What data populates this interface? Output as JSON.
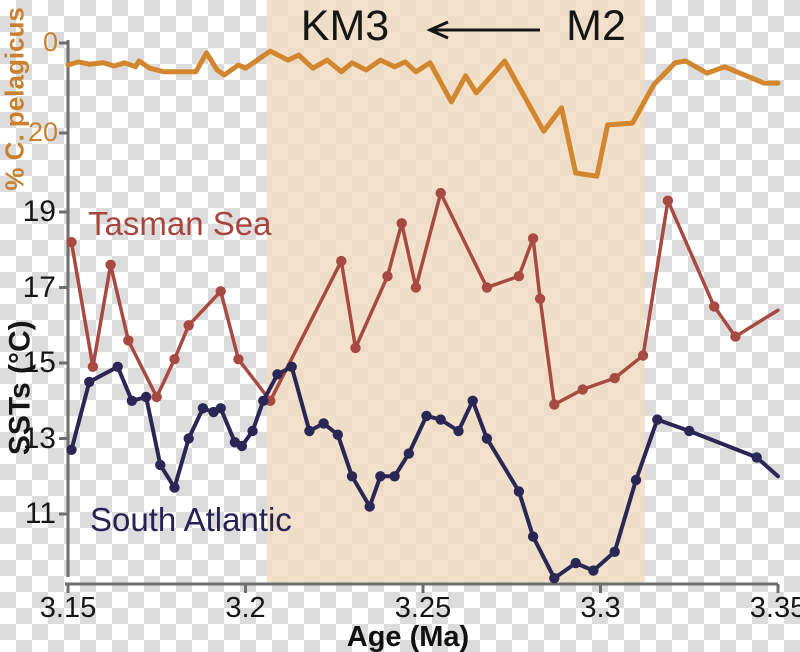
{
  "chart_data": {
    "type": "line",
    "title": "",
    "x_axis": {
      "label": "Age (Ma)",
      "min": 3.15,
      "max": 3.35,
      "ticks": [
        {
          "value": 3.15,
          "label": "3.15"
        },
        {
          "value": 3.2,
          "label": "3.2"
        },
        {
          "value": 3.25,
          "label": "3.25"
        },
        {
          "value": 3.3,
          "label": "3.3"
        },
        {
          "value": 3.35,
          "label": "3.35"
        }
      ]
    },
    "y_axes": {
      "pelagicus": {
        "label": "% C. pelagicus",
        "orientation": "inverted",
        "tick_range": [
          0,
          20
        ],
        "ticks": [
          {
            "value": 0,
            "label": "0"
          },
          {
            "value": 20,
            "label": "20"
          }
        ],
        "color": "#c9812f"
      },
      "sst": {
        "label": "SSTs (°C)",
        "tick_range": [
          11,
          19
        ],
        "ticks": [
          {
            "value": 19,
            "label": "19"
          },
          {
            "value": 17,
            "label": "17"
          },
          {
            "value": 15,
            "label": "15"
          },
          {
            "value": 13,
            "label": "13"
          },
          {
            "value": 11,
            "label": "11"
          }
        ],
        "color": "#161616"
      }
    },
    "highlight_band": {
      "age_start": 3.206,
      "age_end": 3.3125,
      "color": "rgba(240,221,194,0.85)"
    },
    "annotations": {
      "km3": "KM3",
      "m2": "M2",
      "arrow_direction": "left"
    },
    "series": [
      {
        "id": "pelagicus",
        "name": "% C. pelagicus",
        "axis": "pelagicus",
        "color": "#d2862e",
        "markers": false,
        "points": [
          [
            3.15,
            4.9
          ],
          [
            3.153,
            4.2
          ],
          [
            3.156,
            4.7
          ],
          [
            3.16,
            4.4
          ],
          [
            3.163,
            5.1
          ],
          [
            3.166,
            4.4
          ],
          [
            3.169,
            5.3
          ],
          [
            3.17,
            4.0
          ],
          [
            3.173,
            5.6
          ],
          [
            3.177,
            6.4
          ],
          [
            3.182,
            6.4
          ],
          [
            3.186,
            6.4
          ],
          [
            3.189,
            2.2
          ],
          [
            3.192,
            6.0
          ],
          [
            3.194,
            7.1
          ],
          [
            3.198,
            4.9
          ],
          [
            3.2,
            5.6
          ],
          [
            3.207,
            1.8
          ],
          [
            3.212,
            3.8
          ],
          [
            3.215,
            2.7
          ],
          [
            3.219,
            5.6
          ],
          [
            3.223,
            3.8
          ],
          [
            3.227,
            6.4
          ],
          [
            3.23,
            4.4
          ],
          [
            3.234,
            6.0
          ],
          [
            3.238,
            3.8
          ],
          [
            3.242,
            5.3
          ],
          [
            3.245,
            4.2
          ],
          [
            3.248,
            6.4
          ],
          [
            3.252,
            4.4
          ],
          [
            3.258,
            13.1
          ],
          [
            3.262,
            7.3
          ],
          [
            3.265,
            11.1
          ],
          [
            3.273,
            4.0
          ],
          [
            3.284,
            19.6
          ],
          [
            3.289,
            14.4
          ],
          [
            3.293,
            28.9
          ],
          [
            3.299,
            29.6
          ],
          [
            3.302,
            18.2
          ],
          [
            3.309,
            17.8
          ],
          [
            3.315,
            9.3
          ],
          [
            3.321,
            4.4
          ],
          [
            3.324,
            4.0
          ],
          [
            3.33,
            6.7
          ],
          [
            3.335,
            5.3
          ],
          [
            3.346,
            8.9
          ],
          [
            3.35,
            8.9
          ]
        ]
      },
      {
        "id": "tasman",
        "name": "Tasman Sea",
        "axis": "sst",
        "color": "#a74a42",
        "markers": true,
        "open_end": true,
        "points": [
          [
            3.151,
            18.2
          ],
          [
            3.157,
            14.9
          ],
          [
            3.162,
            17.6
          ],
          [
            3.167,
            15.6
          ],
          [
            3.175,
            14.1
          ],
          [
            3.18,
            15.1
          ],
          [
            3.184,
            16.0
          ],
          [
            3.193,
            16.9
          ],
          [
            3.198,
            15.1
          ],
          [
            3.207,
            14.0
          ],
          [
            3.227,
            17.7
          ],
          [
            3.231,
            15.4
          ],
          [
            3.24,
            17.3
          ],
          [
            3.244,
            18.7
          ],
          [
            3.248,
            17.0
          ],
          [
            3.255,
            19.5
          ],
          [
            3.268,
            17.0
          ],
          [
            3.277,
            17.3
          ],
          [
            3.281,
            18.3
          ],
          [
            3.283,
            16.7
          ],
          [
            3.287,
            13.9
          ],
          [
            3.295,
            14.3
          ],
          [
            3.304,
            14.6
          ],
          [
            3.312,
            15.2
          ],
          [
            3.319,
            19.3
          ],
          [
            3.332,
            16.5
          ],
          [
            3.338,
            15.7
          ],
          [
            3.35,
            16.4
          ]
        ]
      },
      {
        "id": "south_atlantic",
        "name": "South Atlantic",
        "axis": "sst",
        "color": "#2b2754",
        "markers": true,
        "open_end": true,
        "points": [
          [
            3.151,
            12.7
          ],
          [
            3.156,
            14.5
          ],
          [
            3.164,
            14.9
          ],
          [
            3.168,
            14.0
          ],
          [
            3.172,
            14.1
          ],
          [
            3.176,
            12.3
          ],
          [
            3.18,
            11.7
          ],
          [
            3.184,
            13.0
          ],
          [
            3.188,
            13.8
          ],
          [
            3.191,
            13.7
          ],
          [
            3.193,
            13.8
          ],
          [
            3.197,
            12.9
          ],
          [
            3.199,
            12.8
          ],
          [
            3.202,
            13.2
          ],
          [
            3.205,
            14.0
          ],
          [
            3.209,
            14.7
          ],
          [
            3.213,
            14.9
          ],
          [
            3.218,
            13.2
          ],
          [
            3.222,
            13.4
          ],
          [
            3.226,
            13.1
          ],
          [
            3.23,
            12.0
          ],
          [
            3.235,
            11.2
          ],
          [
            3.238,
            12.0
          ],
          [
            3.242,
            12.0
          ],
          [
            3.246,
            12.6
          ],
          [
            3.251,
            13.6
          ],
          [
            3.255,
            13.5
          ],
          [
            3.26,
            13.2
          ],
          [
            3.264,
            14.0
          ],
          [
            3.268,
            13.0
          ],
          [
            3.277,
            11.6
          ],
          [
            3.281,
            10.4
          ],
          [
            3.287,
            9.3
          ],
          [
            3.293,
            9.7
          ],
          [
            3.298,
            9.5
          ],
          [
            3.304,
            10.0
          ],
          [
            3.31,
            11.9
          ],
          [
            3.316,
            13.5
          ],
          [
            3.325,
            13.2
          ],
          [
            3.344,
            12.5
          ],
          [
            3.35,
            12.0
          ]
        ]
      }
    ]
  }
}
